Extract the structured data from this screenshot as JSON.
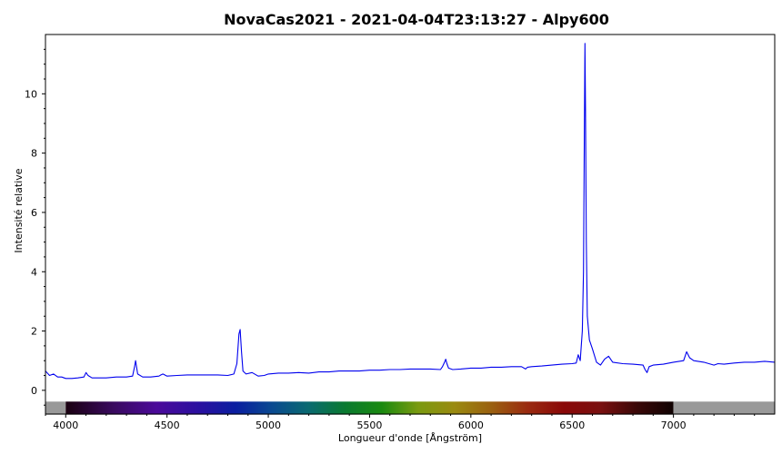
{
  "chart_data": {
    "type": "line",
    "title": "NovaCas2021 - 2021-04-04T23:13:27 - Alpy600",
    "xlabel": "Longueur d'onde [Ångström]",
    "ylabel": "Intensité relative",
    "xlim": [
      3900,
      7500
    ],
    "ylim": [
      -0.8,
      12.0
    ],
    "x_ticks": [
      4000,
      4500,
      5000,
      5500,
      6000,
      6500,
      7000
    ],
    "y_ticks": [
      0,
      2,
      4,
      6,
      8,
      10
    ],
    "grid": false,
    "series_color": "#0000ee",
    "spectrum_band": {
      "start": 4000,
      "end": 7000,
      "outside_color": "#999999"
    },
    "series": [
      {
        "x": [
          3900,
          3920,
          3940,
          3960,
          3980,
          4000,
          4030,
          4060,
          4090,
          4100,
          4110,
          4130,
          4160,
          4200,
          4250,
          4300,
          4330,
          4340,
          4345,
          4355,
          4380,
          4420,
          4460,
          4470,
          4480,
          4500,
          4550,
          4600,
          4650,
          4700,
          4750,
          4800,
          4830,
          4845,
          4855,
          4861,
          4868,
          4875,
          4890,
          4920,
          4950,
          4980,
          5000,
          5050,
          5100,
          5150,
          5200,
          5250,
          5300,
          5350,
          5400,
          5450,
          5500,
          5550,
          5600,
          5650,
          5700,
          5750,
          5800,
          5850,
          5860,
          5870,
          5876,
          5882,
          5890,
          5910,
          5950,
          6000,
          6050,
          6100,
          6150,
          6200,
          6250,
          6270,
          6280,
          6300,
          6350,
          6400,
          6450,
          6500,
          6520,
          6530,
          6540,
          6550,
          6556,
          6560,
          6563,
          6566,
          6570,
          6575,
          6585,
          6600,
          6620,
          6640,
          6660,
          6680,
          6700,
          6750,
          6800,
          6850,
          6860,
          6870,
          6880,
          6900,
          6950,
          7000,
          7050,
          7065,
          7080,
          7100,
          7150,
          7200,
          7220,
          7250,
          7300,
          7350,
          7400,
          7450,
          7500
        ],
        "y": [
          0.65,
          0.5,
          0.55,
          0.45,
          0.45,
          0.4,
          0.4,
          0.42,
          0.45,
          0.6,
          0.5,
          0.42,
          0.42,
          0.42,
          0.45,
          0.45,
          0.48,
          0.8,
          1.0,
          0.55,
          0.45,
          0.45,
          0.48,
          0.52,
          0.55,
          0.48,
          0.5,
          0.52,
          0.52,
          0.52,
          0.52,
          0.5,
          0.55,
          0.9,
          1.9,
          2.05,
          1.3,
          0.65,
          0.55,
          0.6,
          0.48,
          0.5,
          0.55,
          0.58,
          0.58,
          0.6,
          0.58,
          0.62,
          0.62,
          0.65,
          0.65,
          0.65,
          0.68,
          0.68,
          0.7,
          0.7,
          0.72,
          0.72,
          0.72,
          0.7,
          0.8,
          0.95,
          1.05,
          0.9,
          0.75,
          0.7,
          0.72,
          0.75,
          0.75,
          0.78,
          0.78,
          0.8,
          0.8,
          0.72,
          0.78,
          0.8,
          0.82,
          0.85,
          0.88,
          0.9,
          0.92,
          1.2,
          1.0,
          2.0,
          4.0,
          8.5,
          11.7,
          9.5,
          5.0,
          2.5,
          1.7,
          1.4,
          0.95,
          0.85,
          1.05,
          1.15,
          0.95,
          0.9,
          0.88,
          0.85,
          0.7,
          0.6,
          0.8,
          0.85,
          0.88,
          0.95,
          1.0,
          1.3,
          1.1,
          1.0,
          0.95,
          0.85,
          0.9,
          0.88,
          0.92,
          0.95,
          0.95,
          0.98,
          0.95
        ]
      }
    ]
  }
}
